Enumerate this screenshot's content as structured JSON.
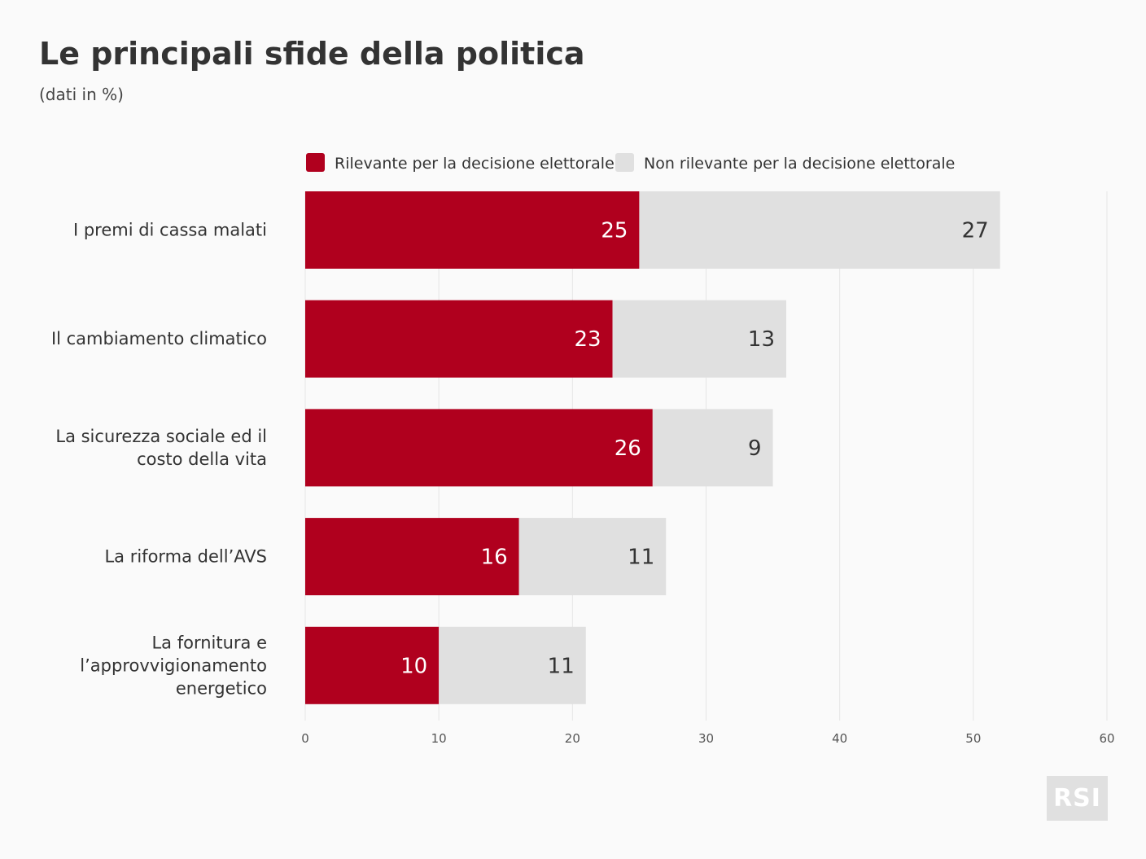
{
  "title": "Le principali sfide della politica",
  "subtitle": "(dati in %)",
  "logo_text": "RSI",
  "colors": {
    "rilevante": "#b0001e",
    "non_rilevante": "#e0e0e0",
    "grid": "#e6e6e6",
    "background": "#fafafa"
  },
  "chart_data": {
    "type": "bar",
    "orientation": "horizontal",
    "stacked": true,
    "categories": [
      [
        "I premi di cassa malati"
      ],
      [
        "Il cambiamento climatico"
      ],
      [
        "La sicurezza sociale ed il",
        "costo della vita"
      ],
      [
        "La riforma dell’AVS"
      ],
      [
        "La fornitura e",
        "l’approvvigionamento",
        "energetico"
      ]
    ],
    "series": [
      {
        "name": "Rilevante per la decisione elettorale",
        "color": "#b0001e",
        "values": [
          25,
          23,
          26,
          16,
          10
        ]
      },
      {
        "name": "Non rilevante per la decisione elettorale",
        "color": "#e0e0e0",
        "values": [
          27,
          13,
          9,
          11,
          11
        ]
      }
    ],
    "xlim": [
      0,
      60
    ],
    "xticks": [
      0,
      10,
      20,
      30,
      40,
      50,
      60
    ],
    "grid": true,
    "legend_position": "top"
  }
}
